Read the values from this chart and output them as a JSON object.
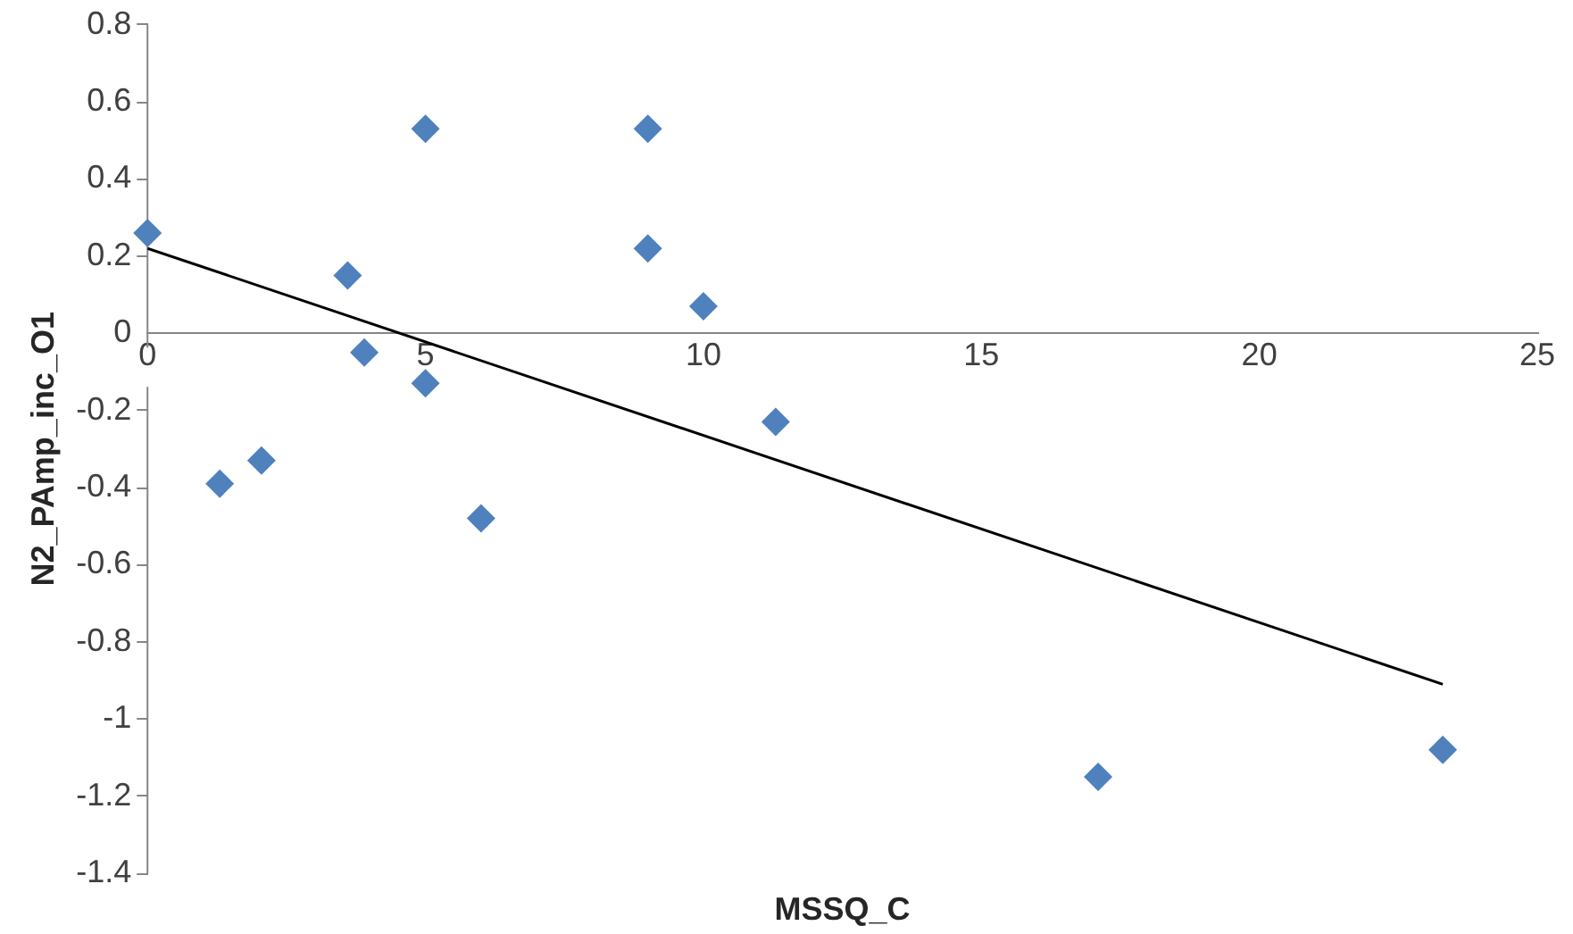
{
  "chart_data": {
    "type": "scatter",
    "xlabel": "MSSQ_C",
    "ylabel": "N2_PAmp_inc_O1",
    "series": [
      {
        "type": "scatter",
        "color": "#4f81bd",
        "x": [
          0,
          1.3,
          2.05,
          3.6,
          3.9,
          5,
          5,
          6,
          9,
          9,
          10,
          11.3,
          17.1,
          23.3
        ],
        "values": [
          0.26,
          -0.39,
          -0.33,
          0.15,
          -0.05,
          0.53,
          -0.13,
          -0.48,
          0.53,
          0.22,
          0.07,
          -0.23,
          -1.15,
          -1.08
        ]
      },
      {
        "type": "line",
        "color": "#000000",
        "marker": "none",
        "x": [
          0,
          23.3
        ],
        "values": [
          0.22,
          -0.91
        ]
      }
    ],
    "marker": "diamond",
    "xlim": [
      0,
      25
    ],
    "xticks": [
      0,
      5,
      10,
      15,
      20,
      25
    ],
    "ylim": [
      -1.4,
      0.8
    ],
    "yticks": [
      -1.4,
      -1.2,
      -1,
      -0.8,
      -0.6,
      -0.4,
      -0.2,
      0,
      0.2,
      0.4,
      0.6,
      0.8
    ],
    "grid": false,
    "legend": false
  }
}
